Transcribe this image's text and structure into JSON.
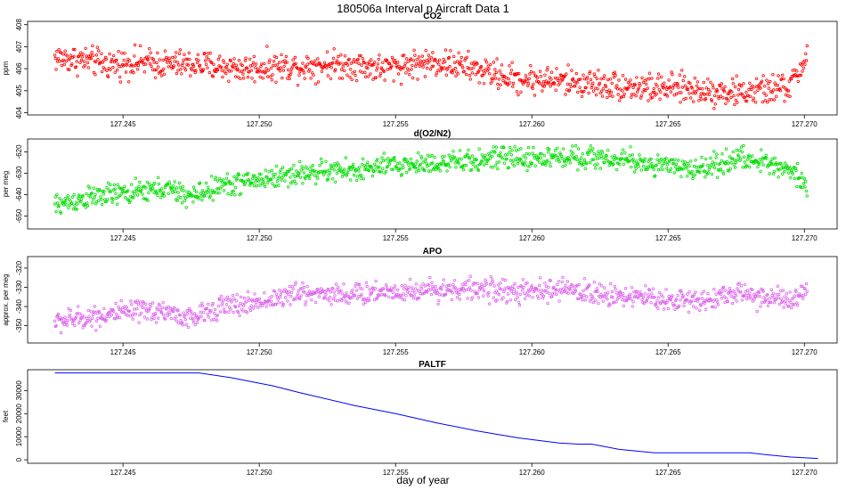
{
  "figure": {
    "title": "180506a   Interval p Aircraft Data 1",
    "xlabel": "day of year"
  },
  "chart_data": [
    {
      "type": "scatter",
      "title": "CO2",
      "xlabel": "",
      "ylabel": "ppm",
      "xlim": [
        127.2415,
        127.2712
      ],
      "ylim": [
        403.9,
        408.15
      ],
      "xticks": [
        127.245,
        127.25,
        127.255,
        127.26,
        127.265,
        127.27
      ],
      "yticks": [
        404,
        405,
        406,
        407,
        408
      ],
      "color": "#ff0000",
      "grid": false,
      "x": [
        127.2425,
        127.2435,
        127.2445,
        127.2455,
        127.2465,
        127.2475,
        127.2485,
        127.2495,
        127.2505,
        127.2515,
        127.2525,
        127.2535,
        127.2545,
        127.2555,
        127.2565,
        127.2575,
        127.2585,
        127.2595,
        127.2605,
        127.2615,
        127.2625,
        127.2635,
        127.2645,
        127.2655,
        127.2665,
        127.2675,
        127.2685,
        127.2695,
        127.2701
      ],
      "y": [
        406.5,
        406.4,
        406.2,
        406.3,
        406.2,
        406.2,
        406.1,
        406.0,
        406.1,
        406.1,
        406.2,
        406.2,
        406.0,
        406.2,
        406.3,
        406.1,
        405.8,
        405.5,
        405.5,
        405.4,
        405.3,
        405.2,
        405.1,
        405.1,
        405.0,
        404.9,
        405.0,
        405.2,
        406.6
      ],
      "noise": 0.4
    },
    {
      "type": "scatter",
      "title": "d(O2/N2)",
      "xlabel": "",
      "ylabel": "per meg",
      "xlim": [
        127.2415,
        127.2712
      ],
      "ylim": [
        -656,
        -614
      ],
      "xticks": [
        127.245,
        127.25,
        127.255,
        127.26,
        127.265,
        127.27
      ],
      "yticks": [
        -650,
        -640,
        -630,
        -620
      ],
      "color": "#00dd00",
      "grid": false,
      "x": [
        127.2425,
        127.2435,
        127.2445,
        127.2455,
        127.2465,
        127.2475,
        127.2485,
        127.2495,
        127.2505,
        127.2515,
        127.2525,
        127.2535,
        127.2545,
        127.2555,
        127.2565,
        127.2575,
        127.2585,
        127.2595,
        127.2605,
        127.2615,
        127.2625,
        127.2635,
        127.2645,
        127.2655,
        127.2665,
        127.2675,
        127.2685,
        127.2695,
        127.2701
      ],
      "y": [
        -645,
        -642,
        -640,
        -639,
        -637,
        -641,
        -636,
        -634,
        -632,
        -630,
        -629,
        -629,
        -627,
        -626,
        -625,
        -625,
        -623,
        -623,
        -623,
        -622,
        -623,
        -624,
        -626,
        -628,
        -627,
        -623,
        -625,
        -628,
        -635
      ],
      "noise": 3.2
    },
    {
      "type": "scatter",
      "title": "APO",
      "xlabel": "",
      "ylabel": "approx. per meg",
      "xlim": [
        127.2415,
        127.2712
      ],
      "ylim": [
        -359,
        -314
      ],
      "xticks": [
        127.245,
        127.25,
        127.255,
        127.26,
        127.265,
        127.27
      ],
      "yticks": [
        -350,
        -340,
        -330,
        -320
      ],
      "color": "#dd66ee",
      "grid": false,
      "x": [
        127.2425,
        127.2435,
        127.2445,
        127.2455,
        127.2465,
        127.2475,
        127.2485,
        127.2495,
        127.2505,
        127.2515,
        127.2525,
        127.2535,
        127.2545,
        127.2555,
        127.2565,
        127.2575,
        127.2585,
        127.2595,
        127.2605,
        127.2615,
        127.2625,
        127.2635,
        127.2645,
        127.2655,
        127.2665,
        127.2675,
        127.2685,
        127.2695,
        127.2701
      ],
      "y": [
        -348,
        -346,
        -344,
        -343,
        -342,
        -347,
        -340,
        -339,
        -336,
        -333,
        -333,
        -334,
        -332,
        -332,
        -331,
        -331,
        -331,
        -333,
        -332,
        -331,
        -334,
        -334,
        -336,
        -337,
        -336,
        -333,
        -335,
        -337,
        -333
      ],
      "noise": 3.6
    },
    {
      "type": "line",
      "title": "PALTF",
      "xlabel": "",
      "ylabel": "feet",
      "xlim": [
        127.2415,
        127.2712
      ],
      "ylim": [
        -1500,
        39000
      ],
      "xticks": [
        127.245,
        127.25,
        127.255,
        127.26,
        127.265,
        127.27
      ],
      "yticks": [
        0,
        10000,
        20000,
        30000
      ],
      "color": "#0000ff",
      "grid": false,
      "x": [
        127.2425,
        127.2445,
        127.2465,
        127.2478,
        127.249,
        127.2505,
        127.2515,
        127.2535,
        127.255,
        127.2565,
        127.258,
        127.2595,
        127.261,
        127.2617,
        127.2622,
        127.2632,
        127.2645,
        127.2658,
        127.2672,
        127.268,
        127.2686,
        127.2695,
        127.2705
      ],
      "y": [
        37600,
        37600,
        37600,
        37600,
        35500,
        32000,
        29000,
        23500,
        20000,
        16000,
        12500,
        9500,
        7300,
        6800,
        6800,
        4500,
        3000,
        3000,
        3000,
        3000,
        2200,
        1200,
        600
      ]
    }
  ]
}
